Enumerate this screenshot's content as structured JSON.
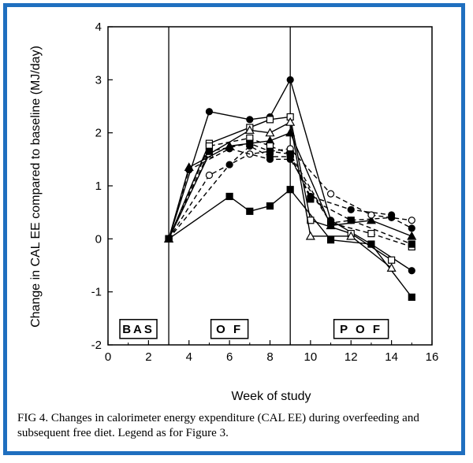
{
  "figure": {
    "caption": "FIG 4. Changes in calorimeter energy expenditure (CAL EE) during overfeeding and subsequent free diet. Legend as for Figure 3."
  },
  "chart_data": {
    "type": "line",
    "xlabel": "Week of study",
    "ylabel": "Change in CAL EE compared to baseline (MJ/day)",
    "xlim": [
      0,
      16
    ],
    "ylim": [
      -2,
      4
    ],
    "xticks": [
      "0",
      "2",
      "4",
      "6",
      "8",
      "10",
      "12",
      "14",
      "16"
    ],
    "yticks": [
      "-2",
      "-1",
      "0",
      "1",
      "2",
      "3",
      "4"
    ],
    "grid": false,
    "phase_lines_x": [
      3,
      9
    ],
    "phases": [
      {
        "label": "BAS",
        "x": 1.5,
        "y": -1.7
      },
      {
        "label": "O F",
        "x": 6,
        "y": -1.7
      },
      {
        "label": "P O F",
        "x": 12.5,
        "y": -1.7
      }
    ],
    "series": [
      {
        "marker": "circle-filled",
        "dash": "solid",
        "x": [
          3,
          5,
          7,
          8,
          9,
          11,
          13,
          15
        ],
        "y": [
          0,
          2.4,
          2.25,
          2.3,
          3.0,
          0.35,
          -0.1,
          -0.6
        ]
      },
      {
        "marker": "square-filled",
        "dash": "solid",
        "x": [
          3,
          6,
          7,
          8,
          9,
          11,
          13,
          15
        ],
        "y": [
          0,
          0.8,
          0.52,
          0.62,
          0.93,
          -0.02,
          -0.1,
          -1.1
        ]
      },
      {
        "marker": "square-open",
        "dash": "solid",
        "x": [
          3,
          5,
          7,
          8,
          9,
          10,
          12,
          14
        ],
        "y": [
          0,
          1.8,
          2.1,
          2.25,
          2.3,
          0.35,
          0.1,
          -0.4
        ]
      },
      {
        "marker": "triangle-open",
        "dash": "solid",
        "x": [
          3,
          5,
          7,
          8,
          9,
          10,
          12,
          14
        ],
        "y": [
          0,
          1.6,
          2.05,
          2.0,
          2.2,
          0.05,
          0.05,
          -0.55
        ]
      },
      {
        "marker": "triangle-filled",
        "dash": "solid",
        "x": [
          3,
          4,
          6,
          8,
          9,
          11,
          13,
          15
        ],
        "y": [
          0,
          1.35,
          1.75,
          1.85,
          2.0,
          0.25,
          0.35,
          0.05
        ]
      },
      {
        "marker": "circle-open",
        "dash": "dashed",
        "x": [
          3,
          5,
          7,
          8,
          9,
          11,
          13,
          15
        ],
        "y": [
          0,
          1.2,
          1.6,
          1.65,
          1.7,
          0.85,
          0.45,
          0.35
        ]
      },
      {
        "marker": "circle-filled",
        "dash": "dashed",
        "x": [
          3,
          6,
          7,
          8,
          9,
          10,
          12,
          14
        ],
        "y": [
          0,
          1.4,
          1.75,
          1.55,
          1.55,
          0.8,
          0.55,
          0.45
        ]
      },
      {
        "marker": "square-open",
        "dash": "dashed",
        "x": [
          3,
          5,
          7,
          8,
          9,
          11,
          13,
          15
        ],
        "y": [
          0,
          1.75,
          1.9,
          1.75,
          1.6,
          0.3,
          0.1,
          -0.15
        ]
      },
      {
        "marker": "circle-filled",
        "dash": "dashed",
        "x": [
          3,
          4,
          6,
          8,
          9,
          11,
          12,
          14,
          15
        ],
        "y": [
          0,
          1.3,
          1.7,
          1.5,
          1.5,
          0.3,
          0.35,
          0.4,
          0.2
        ]
      },
      {
        "marker": "square-filled",
        "dash": "dashed",
        "x": [
          3,
          5,
          7,
          8,
          9,
          10,
          12,
          15
        ],
        "y": [
          0,
          1.65,
          1.8,
          1.65,
          1.6,
          0.75,
          0.35,
          -0.1
        ]
      }
    ]
  }
}
